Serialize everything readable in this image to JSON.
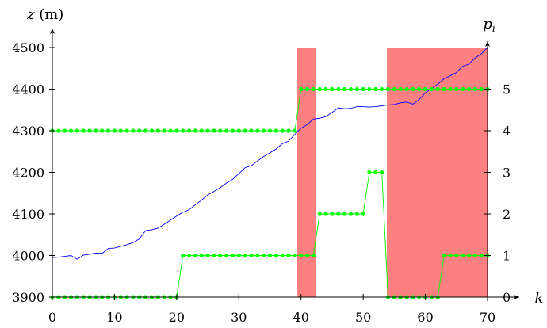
{
  "chart_data": {
    "type": "line",
    "title": "",
    "xlabel": "k",
    "ylabel_left": "z (m)",
    "ylabel_right": "p_i",
    "xlim": [
      0,
      70
    ],
    "ylim_left": [
      3900,
      4500
    ],
    "ylim_right": [
      0,
      5.6
    ],
    "xticks": [
      0,
      10,
      20,
      30,
      40,
      50,
      60,
      70
    ],
    "yticks_left": [
      3900,
      4000,
      4100,
      4200,
      4300,
      4400,
      4500
    ],
    "yticks_right": [
      0,
      1,
      2,
      3,
      4,
      5
    ],
    "grid": false,
    "legend": "none",
    "shaded_regions": [
      {
        "x_start": 39.4,
        "x_end": 42.4,
        "y_top": 4500
      },
      {
        "x_start": 53.8,
        "x_end": 70,
        "y_top": 4500
      }
    ],
    "series": [
      {
        "axis": "left",
        "color": "#0000ff",
        "markers": false,
        "x": [
          0,
          1,
          2,
          3,
          4,
          5,
          6,
          7,
          8,
          9,
          10,
          11,
          12,
          13,
          14,
          15,
          16,
          17,
          18,
          19,
          20,
          21,
          22,
          23,
          24,
          25,
          26,
          27,
          28,
          29,
          30,
          31,
          32,
          33,
          34,
          35,
          36,
          37,
          38,
          39,
          40,
          41,
          42,
          43,
          44,
          45,
          46,
          47,
          48,
          49,
          50,
          51,
          52,
          53,
          54,
          55,
          56,
          57,
          58,
          59,
          60,
          61,
          62,
          63,
          64,
          65,
          66,
          67,
          68,
          69,
          70
        ],
        "y": [
          3995,
          3996,
          3998,
          4000,
          3991,
          4001,
          4003,
          4006,
          4005,
          4017,
          4018,
          4022,
          4026,
          4031,
          4040,
          4060,
          4062,
          4066,
          4075,
          4085,
          4095,
          4104,
          4110,
          4122,
          4133,
          4146,
          4154,
          4163,
          4174,
          4183,
          4197,
          4211,
          4216,
          4227,
          4238,
          4247,
          4256,
          4269,
          4275,
          4291,
          4306,
          4315,
          4328,
          4330,
          4334,
          4344,
          4355,
          4353,
          4354,
          4358,
          4358,
          4357,
          4358,
          4360,
          4362,
          4363,
          4367,
          4369,
          4364,
          4375,
          4391,
          4402,
          4412,
          4425,
          4432,
          4440,
          4455,
          4460,
          4475,
          4485,
          4500
        ]
      },
      {
        "axis": "right",
        "color": "#00ff00",
        "markers": true,
        "x": [
          0,
          1,
          2,
          3,
          4,
          5,
          6,
          7,
          8,
          9,
          10,
          11,
          12,
          13,
          14,
          15,
          16,
          17,
          18,
          19,
          20,
          21,
          22,
          23,
          24,
          25,
          26,
          27,
          28,
          29,
          30,
          31,
          32,
          33,
          34,
          35,
          36,
          37,
          38,
          39,
          40,
          41,
          42,
          43,
          44,
          45,
          46,
          47,
          48,
          49,
          50,
          51,
          52,
          53,
          54,
          55,
          56,
          57,
          58,
          59,
          60,
          61,
          62,
          63,
          64,
          65,
          66,
          67,
          68,
          69,
          70
        ],
        "y": [
          4,
          4,
          4,
          4,
          4,
          4,
          4,
          4,
          4,
          4,
          4,
          4,
          4,
          4,
          4,
          4,
          4,
          4,
          4,
          4,
          4,
          4,
          4,
          4,
          4,
          4,
          4,
          4,
          4,
          4,
          4,
          4,
          4,
          4,
          4,
          4,
          4,
          4,
          4,
          4,
          5,
          5,
          5,
          5,
          5,
          5,
          5,
          5,
          5,
          5,
          5,
          5,
          5,
          5,
          5,
          5,
          5,
          5,
          5,
          5,
          5,
          5,
          5,
          5,
          5,
          5,
          5,
          5,
          5,
          5,
          5
        ]
      },
      {
        "axis": "right",
        "color": "#00ff00",
        "markers": true,
        "x": [
          0,
          1,
          2,
          3,
          4,
          5,
          6,
          7,
          8,
          9,
          10,
          11,
          12,
          13,
          14,
          15,
          16,
          17,
          18,
          19,
          20,
          21,
          22,
          23,
          24,
          25,
          26,
          27,
          28,
          29,
          30,
          31,
          32,
          33,
          34,
          35,
          36,
          37,
          38,
          39,
          40,
          41,
          42,
          43,
          44,
          45,
          46,
          47,
          48,
          49,
          50,
          51,
          52,
          53,
          54,
          55,
          56,
          57,
          58,
          59,
          60,
          61,
          62,
          63,
          64,
          65,
          66,
          67,
          68,
          69,
          70
        ],
        "y": [
          0,
          0,
          0,
          0,
          0,
          0,
          0,
          0,
          0,
          0,
          0,
          0,
          0,
          0,
          0,
          0,
          0,
          0,
          0,
          0,
          0,
          1,
          1,
          1,
          1,
          1,
          1,
          1,
          1,
          1,
          1,
          1,
          1,
          1,
          1,
          1,
          1,
          1,
          1,
          1,
          1,
          1,
          1,
          2,
          2,
          2,
          2,
          2,
          2,
          2,
          2,
          3,
          3,
          3,
          0,
          0,
          0,
          0,
          0,
          0,
          0,
          0,
          0,
          1,
          1,
          1,
          1,
          1,
          1,
          1,
          1
        ]
      }
    ]
  }
}
